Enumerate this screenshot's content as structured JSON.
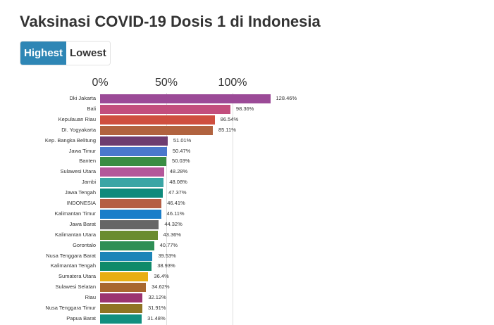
{
  "title": "Vaksinasi COVID-19 Dosis 1 di Indonesia",
  "toggle": {
    "highest_label": "Highest",
    "lowest_label": "Lowest",
    "selected": "Highest"
  },
  "axis": {
    "ticks": [
      "0%",
      "50%",
      "100%"
    ]
  },
  "rows": [
    {
      "label": "Dki Jakarta",
      "value": "128.46%",
      "color": "#9b4a97"
    },
    {
      "label": "Bali",
      "value": "98.36%",
      "color": "#c24e7d"
    },
    {
      "label": "Kepulauan Riau",
      "value": "86.54%",
      "color": "#cf4f3f"
    },
    {
      "label": "DI. Yogyakarta",
      "value": "85.11%",
      "color": "#b1633f"
    },
    {
      "label": "Kep. Bangka Belitung",
      "value": "51.01%",
      "color": "#6e3c70"
    },
    {
      "label": "Jawa Timur",
      "value": "50.47%",
      "color": "#4a78cc"
    },
    {
      "label": "Banten",
      "value": "50.03%",
      "color": "#3a8d43"
    },
    {
      "label": "Sulawesi Utara",
      "value": "48.28%",
      "color": "#b4579a"
    },
    {
      "label": "Jambi",
      "value": "48.08%",
      "color": "#3aa5a5"
    },
    {
      "label": "Jawa Tengah",
      "value": "47.37%",
      "color": "#0e8a7c"
    },
    {
      "label": "INDONESIA",
      "value": "46.41%",
      "color": "#b55f44"
    },
    {
      "label": "Kalimantan Timur",
      "value": "46.11%",
      "color": "#1a7ec9"
    },
    {
      "label": "Jawa Barat",
      "value": "44.32%",
      "color": "#666666"
    },
    {
      "label": "Kalimantan Utara",
      "value": "43.36%",
      "color": "#6a8c2e"
    },
    {
      "label": "Gorontalo",
      "value": "40.77%",
      "color": "#2e8f55"
    },
    {
      "label": "Nusa Tenggara Barat",
      "value": "39.53%",
      "color": "#1d85b8"
    },
    {
      "label": "Kalimantan Tengah",
      "value": "38.93%",
      "color": "#0f8a6a"
    },
    {
      "label": "Sumatera Utara",
      "value": "36.4%",
      "color": "#e8ae12"
    },
    {
      "label": "Sulawesi Selatan",
      "value": "34.62%",
      "color": "#a8672e"
    },
    {
      "label": "Riau",
      "value": "32.12%",
      "color": "#9b3470"
    },
    {
      "label": "Nusa Tenggara Timur",
      "value": "31.91%",
      "color": "#8f7424"
    },
    {
      "label": "Papua Barat",
      "value": "31.48%",
      "color": "#128f80"
    }
  ],
  "chart_data": {
    "type": "bar",
    "orientation": "horizontal",
    "title": "Vaksinasi COVID-19 Dosis 1 di Indonesia",
    "xlabel": "",
    "ylabel": "",
    "x_ticks": [
      "0%",
      "50%",
      "100%"
    ],
    "xlim": [
      0,
      135
    ],
    "grid": true,
    "sort": "Highest",
    "categories": [
      "Dki Jakarta",
      "Bali",
      "Kepulauan Riau",
      "DI. Yogyakarta",
      "Kep. Bangka Belitung",
      "Jawa Timur",
      "Banten",
      "Sulawesi Utara",
      "Jambi",
      "Jawa Tengah",
      "INDONESIA",
      "Kalimantan Timur",
      "Jawa Barat",
      "Kalimantan Utara",
      "Gorontalo",
      "Nusa Tenggara Barat",
      "Kalimantan Tengah",
      "Sumatera Utara",
      "Sulawesi Selatan",
      "Riau",
      "Nusa Tenggara Timur",
      "Papua Barat"
    ],
    "values": [
      128.46,
      98.36,
      86.54,
      85.11,
      51.01,
      50.47,
      50.03,
      48.28,
      48.08,
      47.37,
      46.41,
      46.11,
      44.32,
      43.36,
      40.77,
      39.53,
      38.93,
      36.4,
      34.62,
      32.12,
      31.91,
      31.48
    ]
  }
}
